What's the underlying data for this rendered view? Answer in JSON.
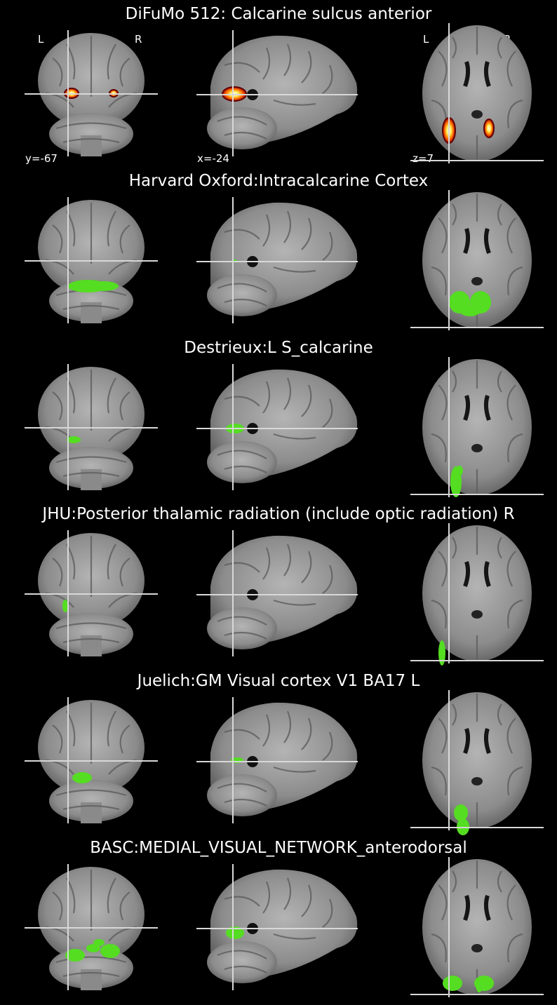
{
  "orientation": {
    "left": "L",
    "right": "R"
  },
  "coords": {
    "coronal": "y=-67",
    "sagittal": "x=-24",
    "axial": "z=7"
  },
  "colors": {
    "background": "#000000",
    "crosshair": "#d8d8d8",
    "atlas_overlay": "#55dd22",
    "probability_map": "hot"
  },
  "rows": [
    {
      "title": "DiFuMo 512: Calcarine sulcus anterior",
      "overlay": "hot",
      "show_labels": true
    },
    {
      "title": "Harvard Oxford:Intracalcarine Cortex",
      "overlay": "green"
    },
    {
      "title": "Destrieux:L S_calcarine",
      "overlay": "green"
    },
    {
      "title": "JHU:Posterior thalamic radiation (include optic radiation) R",
      "overlay": "green"
    },
    {
      "title": "Juelich:GM Visual cortex V1 BA17 L",
      "overlay": "green"
    },
    {
      "title": "BASC:MEDIAL_VISUAL_NETWORK_anterodorsal",
      "overlay": "green"
    }
  ]
}
